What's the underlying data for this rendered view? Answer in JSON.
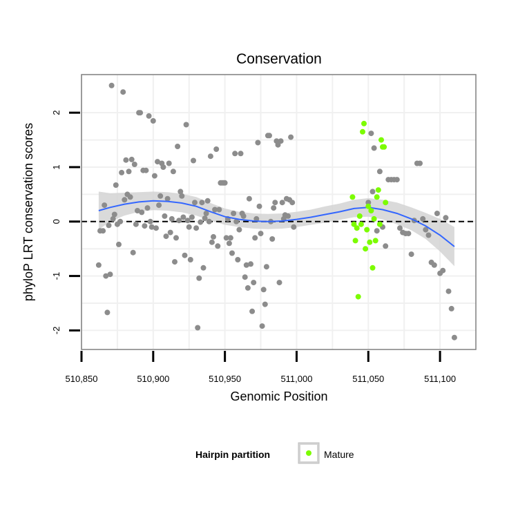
{
  "chart_data": {
    "type": "scatter",
    "title": "Conservation",
    "xlabel": "Genomic Position",
    "ylabel": "phyloP LRT conservation scores",
    "xlim": [
      510850,
      511125
    ],
    "ylim": [
      -2.35,
      2.7
    ],
    "x_ticks": [
      510850,
      510900,
      510950,
      511000,
      511050,
      511100
    ],
    "x_tick_labels": [
      "510,850",
      "510,900",
      "510,950",
      "511,000",
      "511,050",
      "511,100"
    ],
    "y_ticks": [
      -2,
      -1,
      0,
      1,
      2
    ],
    "y_tick_labels": [
      "-2",
      "-1",
      "0",
      "1",
      "2"
    ],
    "grid": true,
    "reference_line": {
      "y": 0,
      "style": "dashed",
      "color": "#000000"
    },
    "legend": {
      "title": "Hairpin partition",
      "entries": [
        "Mature"
      ],
      "position": "bottom"
    },
    "colors": {
      "other": "#8c8c8c",
      "mature": "#7cfc00",
      "smooth": "#3366ff",
      "ribbon": "#d3d3d3"
    },
    "series": [
      {
        "role": "other",
        "points": [
          [
            510862,
            -0.8
          ],
          [
            510863,
            -0.17
          ],
          [
            510865,
            -0.17
          ],
          [
            510866,
            0.3
          ],
          [
            510867,
            -1.0
          ],
          [
            510868,
            -1.67
          ],
          [
            510869,
            -0.07
          ],
          [
            510870,
            -0.97
          ],
          [
            510871,
            2.5
          ],
          [
            510872,
            0.05
          ],
          [
            510873,
            0.13
          ],
          [
            510874,
            0.67
          ],
          [
            510875,
            -0.05
          ],
          [
            510876,
            -0.42
          ],
          [
            510877,
            0.0
          ],
          [
            510878,
            0.9
          ],
          [
            510879,
            2.38
          ],
          [
            510880,
            0.4
          ],
          [
            510881,
            1.13
          ],
          [
            510882,
            0.5
          ],
          [
            510883,
            0.92
          ],
          [
            510884,
            0.45
          ],
          [
            510885,
            1.14
          ],
          [
            510886,
            -0.57
          ],
          [
            510887,
            1.05
          ],
          [
            510888,
            -0.05
          ],
          [
            510889,
            0.2
          ],
          [
            510890,
            2.0
          ],
          [
            510891,
            2.0
          ],
          [
            510892,
            0.17
          ],
          [
            510893,
            0.94
          ],
          [
            510894,
            -0.08
          ],
          [
            510895,
            0.94
          ],
          [
            510896,
            0.25
          ],
          [
            510897,
            1.94
          ],
          [
            510898,
            0.0
          ],
          [
            510899,
            -0.1
          ],
          [
            510900,
            1.85
          ],
          [
            510901,
            0.84
          ],
          [
            510902,
            -0.12
          ],
          [
            510903,
            1.1
          ],
          [
            510904,
            0.3
          ],
          [
            510905,
            0.47
          ],
          [
            510906,
            1.07
          ],
          [
            510907,
            1.0
          ],
          [
            510908,
            0.1
          ],
          [
            510909,
            -0.27
          ],
          [
            510910,
            0.42
          ],
          [
            510911,
            1.07
          ],
          [
            510912,
            -0.2
          ],
          [
            510913,
            0.05
          ],
          [
            510914,
            0.92
          ],
          [
            510915,
            -0.74
          ],
          [
            510916,
            -0.3
          ],
          [
            510917,
            1.38
          ],
          [
            510918,
            0.02
          ],
          [
            510919,
            0.55
          ],
          [
            510920,
            0.47
          ],
          [
            510921,
            0.08
          ],
          [
            510922,
            -0.62
          ],
          [
            510923,
            1.78
          ],
          [
            510924,
            0.02
          ],
          [
            510925,
            -0.1
          ],
          [
            510926,
            -0.7
          ],
          [
            510927,
            0.08
          ],
          [
            510928,
            1.12
          ],
          [
            510929,
            0.35
          ],
          [
            510930,
            -0.12
          ],
          [
            510931,
            -1.95
          ],
          [
            510932,
            -1.04
          ],
          [
            510933,
            -0.01
          ],
          [
            510934,
            0.35
          ],
          [
            510935,
            -0.85
          ],
          [
            510936,
            0.06
          ],
          [
            510937,
            0.15
          ],
          [
            510938,
            0.38
          ],
          [
            510939,
            0.0
          ],
          [
            510940,
            1.2
          ],
          [
            510941,
            -0.38
          ],
          [
            510942,
            -0.28
          ],
          [
            510943,
            0.22
          ],
          [
            510944,
            1.33
          ],
          [
            510945,
            -0.45
          ],
          [
            510946,
            0.22
          ],
          [
            510947,
            0.71
          ],
          [
            510948,
            0.71
          ],
          [
            510949,
            0.71
          ],
          [
            510950,
            0.71
          ],
          [
            510951,
            -0.3
          ],
          [
            510952,
            0.05
          ],
          [
            510953,
            -0.4
          ],
          [
            510954,
            -0.3
          ],
          [
            510955,
            -0.58
          ],
          [
            510956,
            0.15
          ],
          [
            510957,
            1.25
          ],
          [
            510958,
            0.0
          ],
          [
            510959,
            -0.7
          ],
          [
            510960,
            -0.15
          ],
          [
            510961,
            1.25
          ],
          [
            510962,
            0.15
          ],
          [
            510963,
            0.1
          ],
          [
            510964,
            -1.02
          ],
          [
            510965,
            -0.8
          ],
          [
            510966,
            -1.22
          ],
          [
            510967,
            0.42
          ],
          [
            510968,
            -0.78
          ],
          [
            510969,
            -1.65
          ],
          [
            510970,
            -1.12
          ],
          [
            510971,
            -0.3
          ],
          [
            510972,
            0.05
          ],
          [
            510973,
            1.45
          ],
          [
            510974,
            0.28
          ],
          [
            510975,
            -0.22
          ],
          [
            510976,
            -1.92
          ],
          [
            510977,
            -1.25
          ],
          [
            510978,
            -1.52
          ],
          [
            510979,
            -0.83
          ],
          [
            510980,
            1.58
          ],
          [
            510981,
            1.58
          ],
          [
            510982,
            0.0
          ],
          [
            510983,
            -0.32
          ],
          [
            510984,
            0.25
          ],
          [
            510985,
            0.35
          ],
          [
            510986,
            1.48
          ],
          [
            510987,
            1.41
          ],
          [
            510988,
            -1.12
          ],
          [
            510989,
            1.48
          ],
          [
            510990,
            0.35
          ],
          [
            510991,
            0.05
          ],
          [
            510992,
            0.12
          ],
          [
            510993,
            0.42
          ],
          [
            510994,
            0.1
          ],
          [
            510995,
            0.4
          ],
          [
            510996,
            1.55
          ],
          [
            510997,
            0.35
          ],
          [
            510998,
            -0.1
          ],
          [
            511050,
            0.35
          ],
          [
            511052,
            1.62
          ],
          [
            511053,
            0.55
          ],
          [
            511054,
            1.35
          ],
          [
            511056,
            -0.17
          ],
          [
            511058,
            0.92
          ],
          [
            511060,
            -0.1
          ],
          [
            511062,
            -0.45
          ],
          [
            511064,
            0.77
          ],
          [
            511066,
            0.77
          ],
          [
            511068,
            0.77
          ],
          [
            511070,
            0.77
          ],
          [
            511072,
            -0.12
          ],
          [
            511074,
            -0.2
          ],
          [
            511076,
            -0.22
          ],
          [
            511078,
            -0.22
          ],
          [
            511080,
            -0.6
          ],
          [
            511082,
            0.02
          ],
          [
            511084,
            1.07
          ],
          [
            511086,
            1.07
          ],
          [
            511088,
            0.05
          ],
          [
            511090,
            -0.15
          ],
          [
            511092,
            -0.25
          ],
          [
            511094,
            -0.75
          ],
          [
            511096,
            -0.8
          ],
          [
            511098,
            0.15
          ],
          [
            511100,
            -0.95
          ],
          [
            511102,
            -0.9
          ],
          [
            511104,
            0.07
          ],
          [
            511106,
            -1.28
          ],
          [
            511108,
            -1.6
          ],
          [
            511110,
            -2.13
          ]
        ]
      },
      {
        "role": "mature",
        "points": [
          [
            511039,
            0.45
          ],
          [
            511040,
            -0.05
          ],
          [
            511041,
            -0.35
          ],
          [
            511042,
            -0.12
          ],
          [
            511043,
            -1.38
          ],
          [
            511044,
            0.1
          ],
          [
            511045,
            -0.05
          ],
          [
            511046,
            1.65
          ],
          [
            511047,
            1.8
          ],
          [
            511048,
            -0.5
          ],
          [
            511049,
            -0.15
          ],
          [
            511050,
            0.28
          ],
          [
            511051,
            -0.38
          ],
          [
            511052,
            0.2
          ],
          [
            511053,
            -0.85
          ],
          [
            511054,
            0.05
          ],
          [
            511055,
            -0.35
          ],
          [
            511056,
            0.45
          ],
          [
            511057,
            0.58
          ],
          [
            511058,
            -0.05
          ],
          [
            511059,
            1.5
          ],
          [
            511060,
            1.37
          ],
          [
            511061,
            1.37
          ],
          [
            511062,
            0.35
          ]
        ]
      }
    ],
    "smooth": {
      "x": [
        510862,
        510870,
        510880,
        510890,
        510900,
        510910,
        510920,
        510930,
        510940,
        510950,
        510960,
        510970,
        510980,
        510990,
        511000,
        511010,
        511020,
        511030,
        511040,
        511050,
        511060,
        511070,
        511080,
        511090,
        511100,
        511110
      ],
      "y": [
        0.2,
        0.26,
        0.32,
        0.36,
        0.38,
        0.37,
        0.34,
        0.28,
        0.18,
        0.09,
        0.04,
        0.01,
        0.0,
        0.01,
        0.04,
        0.08,
        0.13,
        0.18,
        0.24,
        0.26,
        0.22,
        0.15,
        0.05,
        -0.08,
        -0.25,
        -0.46
      ],
      "lower": [
        -0.15,
        0.0,
        0.11,
        0.18,
        0.21,
        0.2,
        0.17,
        0.11,
        0.02,
        -0.06,
        -0.1,
        -0.13,
        -0.14,
        -0.13,
        -0.1,
        -0.06,
        -0.02,
        0.03,
        0.08,
        0.09,
        0.04,
        -0.05,
        -0.16,
        -0.32,
        -0.55,
        -0.82
      ],
      "upper": [
        0.55,
        0.52,
        0.53,
        0.54,
        0.55,
        0.54,
        0.51,
        0.45,
        0.34,
        0.24,
        0.18,
        0.15,
        0.14,
        0.15,
        0.18,
        0.22,
        0.28,
        0.33,
        0.4,
        0.43,
        0.4,
        0.35,
        0.26,
        0.16,
        0.05,
        -0.1
      ]
    }
  }
}
